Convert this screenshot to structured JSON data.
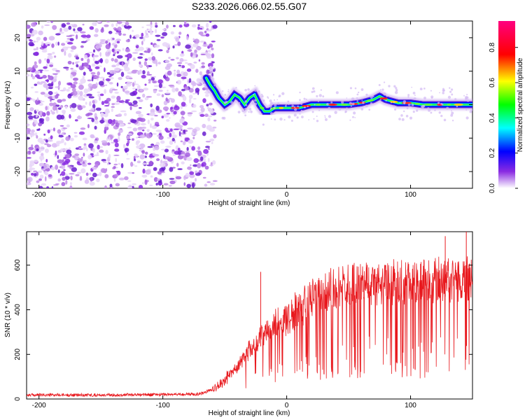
{
  "title": "S233.2026.066.02.55.G07",
  "chart_data": [
    {
      "type": "heatmap",
      "xlabel": "Height of straight line (km)",
      "ylabel": "Frequency (Hz)",
      "xlim": [
        -210,
        150
      ],
      "ylim": [
        -25,
        25
      ],
      "x_ticks": [
        -200,
        -100,
        0,
        100
      ],
      "y_ticks": [
        -20,
        -10,
        0,
        10,
        20
      ],
      "noise_region_x": [
        -210,
        -60
      ],
      "ridge": {
        "x": [
          -65,
          -62,
          -58,
          -55,
          -50,
          -46,
          -42,
          -38,
          -34,
          -30,
          -26,
          -22,
          -18,
          -14,
          -10,
          -5,
          0,
          10,
          20,
          30,
          40,
          50,
          60,
          70,
          75,
          80,
          90,
          100,
          110,
          120,
          130,
          140,
          150
        ],
        "y": [
          8,
          6,
          4,
          2,
          0,
          1,
          3,
          2,
          0,
          2,
          3,
          0,
          -2,
          -2,
          -1,
          -1,
          -1,
          -1,
          0,
          0,
          0,
          0,
          0.5,
          1.5,
          2.5,
          1.5,
          0.5,
          0.5,
          0,
          0,
          0,
          0,
          0
        ]
      },
      "colorbar": {
        "label": "Normalized spectral amplitude",
        "range": [
          0.0,
          0.95
        ],
        "ticks": [
          0.0,
          0.2,
          0.4,
          0.6,
          0.8
        ]
      }
    },
    {
      "type": "line",
      "xlabel": "Height of straight line (km)",
      "ylabel": "SNR (10 * v/v)",
      "xlim": [
        -210,
        150
      ],
      "ylim": [
        0,
        750
      ],
      "x_ticks": [
        -200,
        -100,
        0,
        100
      ],
      "y_ticks": [
        0,
        200,
        400,
        600
      ],
      "color": "#e8191e",
      "envelope": {
        "x": [
          -210,
          -150,
          -90,
          -70,
          -60,
          -50,
          -40,
          -30,
          -20,
          -10,
          0,
          10,
          20,
          30,
          40,
          60,
          80,
          100,
          120,
          140,
          150
        ],
        "y": [
          15,
          15,
          18,
          20,
          40,
          90,
          160,
          250,
          300,
          350,
          390,
          440,
          480,
          520,
          540,
          560,
          560,
          565,
          570,
          580,
          590
        ]
      },
      "spikes": [
        {
          "x": -21,
          "y": 570
        },
        {
          "x": 145,
          "y": 750
        },
        {
          "x": 128,
          "y": 730
        }
      ]
    }
  ]
}
